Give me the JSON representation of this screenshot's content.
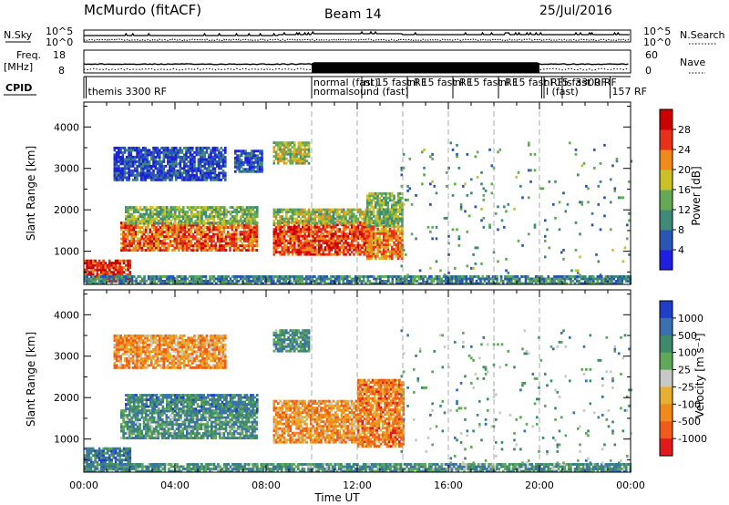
{
  "header": {
    "station": "McMurdo (fitACF)",
    "beam": "Beam 14",
    "date": "25/Jul/2016"
  },
  "noise_panel": {
    "left_label": "N.Sky",
    "right_label": "N.Search",
    "left_ticks": [
      "10^5",
      "10^0"
    ],
    "right_ticks": [
      "10^5",
      "10^0"
    ]
  },
  "freq_panel": {
    "left_label": "Freq.",
    "left_unit": "[MHz]",
    "right_label": "Nave",
    "left_ticks": [
      "18",
      "8"
    ],
    "right_ticks": [
      "60",
      "0"
    ]
  },
  "cpid_panel": {
    "label": "CPID",
    "entries": [
      {
        "row": 0,
        "text": "themis 3300 RF",
        "x_hour": 0.1
      },
      {
        "row": -1,
        "text": "normal (fast)",
        "x_hour": 10.0
      },
      {
        "row": 0,
        "text": "normalsound (fast)",
        "x_hour": 10.0
      },
      {
        "row": -1,
        "text": "nl 15 fast RF",
        "x_hour": 12.2
      },
      {
        "row": -1,
        "text": "nl 15 fast RF",
        "x_hour": 14.2
      },
      {
        "row": -1,
        "text": "nl 15 fast RF",
        "x_hour": 16.2
      },
      {
        "row": -1,
        "text": "nl 15 fast RF",
        "x_hour": 18.2
      },
      {
        "row": -1,
        "text": "nl 15 fast RF",
        "x_hour": 20.1
      },
      {
        "row": 0,
        "text": "l (fast)",
        "x_hour": 20.2
      },
      {
        "row": -1,
        "text": "is 3300 RF",
        "x_hour": 21.0
      },
      {
        "row": 0,
        "text": "157 RF",
        "x_hour": 23.1
      }
    ]
  },
  "chart_data": [
    {
      "type": "heatmap",
      "title": "",
      "ylabel": "Slant Range [km]",
      "xlabel": "",
      "xlim": [
        0,
        24
      ],
      "ylim": [
        200,
        4600
      ],
      "yticks": [
        1000,
        2000,
        3000,
        4000
      ],
      "colorbar": {
        "label": "Power [dB]",
        "ticks": [
          "4",
          "8",
          "12",
          "16",
          "20",
          "24",
          "28"
        ],
        "colors": [
          "#1f1fe0",
          "#2b55b5",
          "#3f8a78",
          "#64aa55",
          "#c9c227",
          "#f08a1a",
          "#e8301a",
          "#cc0000"
        ]
      },
      "regions": [
        {
          "t": [
            1.6,
            7.6
          ],
          "r": [
            1000,
            1700
          ],
          "level": 0.75
        },
        {
          "t": [
            1.8,
            7.6
          ],
          "r": [
            1650,
            2050
          ],
          "level": 0.45
        },
        {
          "t": [
            8.3,
            12.6
          ],
          "r": [
            900,
            1700
          ],
          "level": 0.8
        },
        {
          "t": [
            8.3,
            12.6
          ],
          "r": [
            1650,
            2000
          ],
          "level": 0.5
        },
        {
          "t": [
            12.4,
            14.0
          ],
          "r": [
            800,
            1600
          ],
          "level": 0.7
        },
        {
          "t": [
            12.4,
            14.0
          ],
          "r": [
            1600,
            2400
          ],
          "level": 0.45
        },
        {
          "t": [
            1.3,
            6.2
          ],
          "r": [
            2700,
            3500
          ],
          "level": 0.15
        },
        {
          "t": [
            6.6,
            7.8
          ],
          "r": [
            2900,
            3400
          ],
          "level": 0.2
        },
        {
          "t": [
            8.3,
            9.9
          ],
          "r": [
            3100,
            3650
          ],
          "level": 0.5
        },
        {
          "t": [
            0.0,
            2.0
          ],
          "r": [
            250,
            750
          ],
          "level": 0.85
        },
        {
          "t": [
            0.0,
            24.0
          ],
          "r": [
            200,
            400
          ],
          "level": 0.3
        },
        {
          "t": [
            13.9,
            24.0
          ],
          "r": [
            400,
            3600
          ],
          "level": 0.35,
          "sparse": true
        }
      ]
    },
    {
      "type": "heatmap",
      "title": "",
      "ylabel": "Slant Range [km]",
      "xlabel": "Time UT",
      "xlim": [
        0,
        24
      ],
      "ylim": [
        200,
        4600
      ],
      "yticks": [
        1000,
        2000,
        3000,
        4000
      ],
      "xticks": [
        "00:00",
        "04:00",
        "08:00",
        "12:00",
        "16:00",
        "20:00",
        "00:00"
      ],
      "colorbar": {
        "label": "Velocity [m s⁻¹]",
        "ticks": [
          "1000",
          "500",
          "100",
          "25",
          "-25",
          "-100",
          "-500",
          "-1000"
        ],
        "colors": [
          "#1f3fc8",
          "#3a70b0",
          "#3f8a6a",
          "#5ea85a",
          "#c8c8c8",
          "#e8b030",
          "#f08a1a",
          "#f05a1a",
          "#e01a1a"
        ]
      },
      "regions": [
        {
          "t": [
            1.6,
            7.6
          ],
          "r": [
            1000,
            1700
          ],
          "level": 0.3
        },
        {
          "t": [
            1.8,
            7.6
          ],
          "r": [
            1650,
            2050
          ],
          "level": 0.25
        },
        {
          "t": [
            8.3,
            12.0
          ],
          "r": [
            900,
            1900
          ],
          "level": 0.7
        },
        {
          "t": [
            12.0,
            14.0
          ],
          "r": [
            800,
            2400
          ],
          "level": 0.75
        },
        {
          "t": [
            1.3,
            6.2
          ],
          "r": [
            2700,
            3500
          ],
          "level": 0.7
        },
        {
          "t": [
            8.3,
            9.9
          ],
          "r": [
            3100,
            3650
          ],
          "level": 0.3
        },
        {
          "t": [
            0.0,
            2.0
          ],
          "r": [
            250,
            750
          ],
          "level": 0.2
        },
        {
          "t": [
            0.0,
            24.0
          ],
          "r": [
            200,
            400
          ],
          "level": 0.3
        },
        {
          "t": [
            13.9,
            24.0
          ],
          "r": [
            400,
            3600
          ],
          "level": 0.35,
          "sparse": true
        }
      ]
    }
  ],
  "dashed_hours": [
    10,
    12,
    14,
    16,
    18,
    20
  ]
}
